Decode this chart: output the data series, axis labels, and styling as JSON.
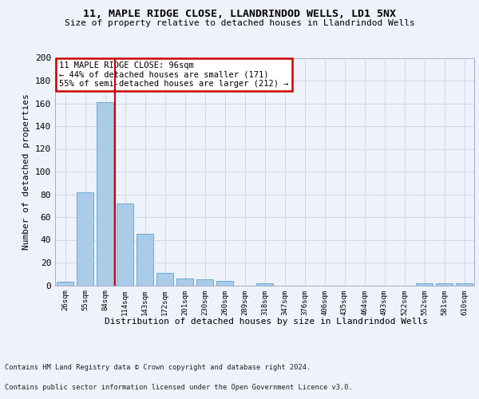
{
  "title1": "11, MAPLE RIDGE CLOSE, LLANDRINDOD WELLS, LD1 5NX",
  "title2": "Size of property relative to detached houses in Llandrindod Wells",
  "xlabel": "Distribution of detached houses by size in Llandrindod Wells",
  "ylabel": "Number of detached properties",
  "footer1": "Contains HM Land Registry data © Crown copyright and database right 2024.",
  "footer2": "Contains public sector information licensed under the Open Government Licence v3.0.",
  "bar_labels": [
    "26sqm",
    "55sqm",
    "84sqm",
    "114sqm",
    "143sqm",
    "172sqm",
    "201sqm",
    "230sqm",
    "260sqm",
    "289sqm",
    "318sqm",
    "347sqm",
    "376sqm",
    "406sqm",
    "435sqm",
    "464sqm",
    "493sqm",
    "522sqm",
    "552sqm",
    "581sqm",
    "610sqm"
  ],
  "bar_values": [
    3,
    82,
    161,
    72,
    45,
    11,
    6,
    5,
    4,
    0,
    2,
    0,
    0,
    0,
    0,
    0,
    0,
    0,
    2,
    2,
    2
  ],
  "bar_color": "#aacce8",
  "bar_edge_color": "#6aaad4",
  "annotation_text": "11 MAPLE RIDGE CLOSE: 96sqm\n← 44% of detached houses are smaller (171)\n55% of semi-detached houses are larger (212) →",
  "annotation_box_color": "#ffffff",
  "annotation_box_edge": "#cc0000",
  "red_line_color": "#cc0000",
  "grid_color": "#d0d8e8",
  "ylim": [
    0,
    200
  ],
  "yticks": [
    0,
    20,
    40,
    60,
    80,
    100,
    120,
    140,
    160,
    180,
    200
  ],
  "bg_color": "#eef2fa"
}
